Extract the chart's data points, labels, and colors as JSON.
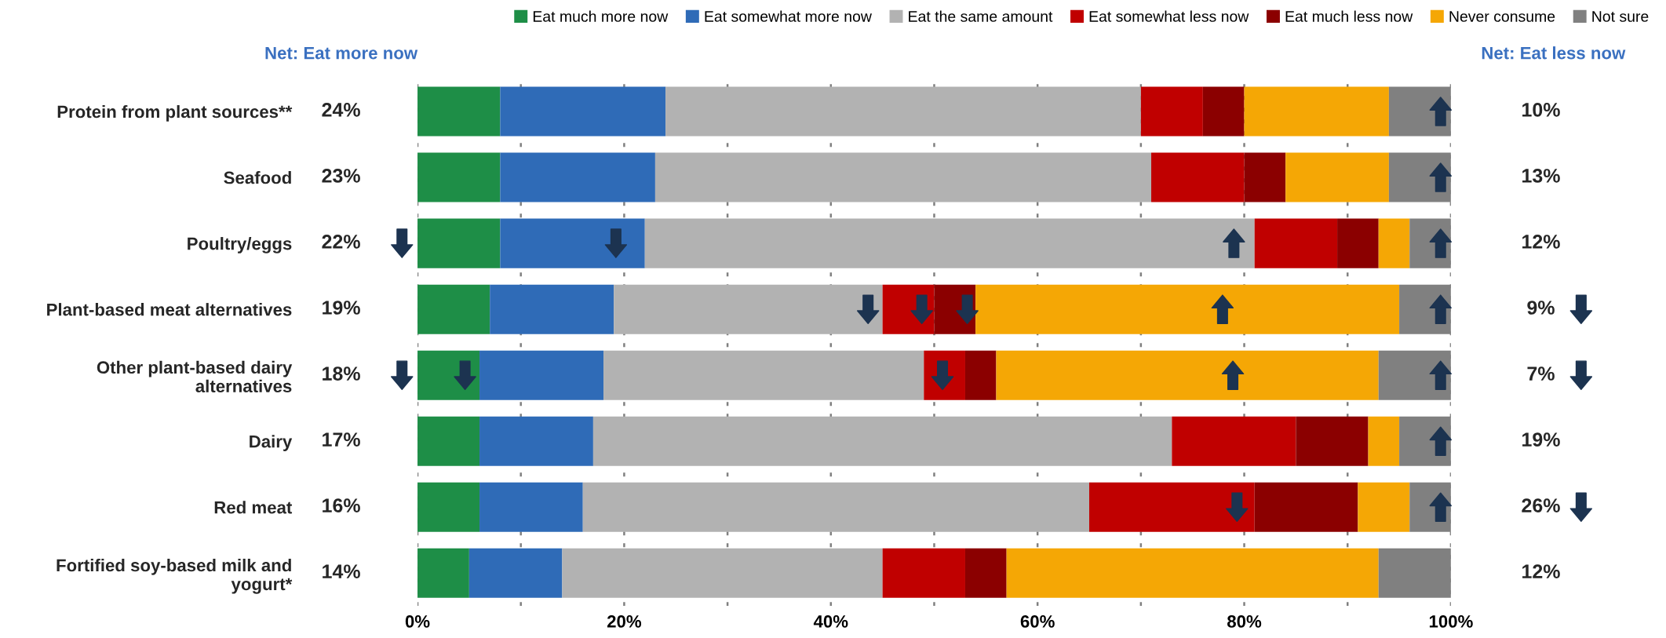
{
  "chart_data": {
    "type": "bar",
    "orientation": "horizontal",
    "stacked": true,
    "categories": [
      "Protein from plant sources**",
      "Seafood",
      "Poultry/eggs",
      "Plant-based meat alternatives",
      "Other plant-based dairy\nalternatives",
      "Dairy",
      "Red meat",
      "Fortified soy-based milk and\nyogurt*"
    ],
    "series": [
      {
        "name": "Eat much more now",
        "color": "#1e8e47",
        "values": [
          8,
          8,
          8,
          7,
          6,
          6,
          6,
          5
        ]
      },
      {
        "name": "Eat somewhat more now",
        "color": "#2f6bb7",
        "values": [
          16,
          15,
          14,
          12,
          12,
          11,
          10,
          9
        ]
      },
      {
        "name": "Eat the same amount",
        "color": "#b2b2b2",
        "values": [
          46,
          48,
          59,
          26,
          31,
          56,
          49,
          31
        ]
      },
      {
        "name": "Eat somewhat less now",
        "color": "#c00000",
        "values": [
          6,
          9,
          8,
          5,
          4,
          12,
          16,
          8
        ]
      },
      {
        "name": "Eat much less now",
        "color": "#8b0000",
        "values": [
          4,
          4,
          4,
          4,
          3,
          7,
          10,
          4
        ]
      },
      {
        "name": "Never consume",
        "color": "#f5a705",
        "values": [
          14,
          10,
          3,
          41,
          37,
          3,
          5,
          36
        ]
      },
      {
        "name": "Not sure",
        "color": "#808080",
        "values": [
          6,
          6,
          4,
          5,
          7,
          5,
          4,
          7
        ]
      }
    ],
    "xlim": [
      0,
      100
    ],
    "xticks": [
      {
        "value": 0,
        "label": "0%"
      },
      {
        "value": 10,
        "label": null
      },
      {
        "value": 20,
        "label": "20%"
      },
      {
        "value": 30,
        "label": null
      },
      {
        "value": 40,
        "label": "40%"
      },
      {
        "value": 50,
        "label": null
      },
      {
        "value": 60,
        "label": "60%"
      },
      {
        "value": 70,
        "label": null
      },
      {
        "value": 80,
        "label": "80%"
      },
      {
        "value": 90,
        "label": null
      },
      {
        "value": 100,
        "label": "100%"
      }
    ],
    "grid": "x",
    "legend": "top",
    "annotations": [
      "Net: Eat more now",
      "24%",
      "23%",
      "22%",
      "19%",
      "18%",
      "17%",
      "16%",
      "14%",
      "Net: Eat less now",
      "10%",
      "13%",
      "12%",
      "9%",
      "7%",
      "19%",
      "26%",
      "12%"
    ]
  }
}
